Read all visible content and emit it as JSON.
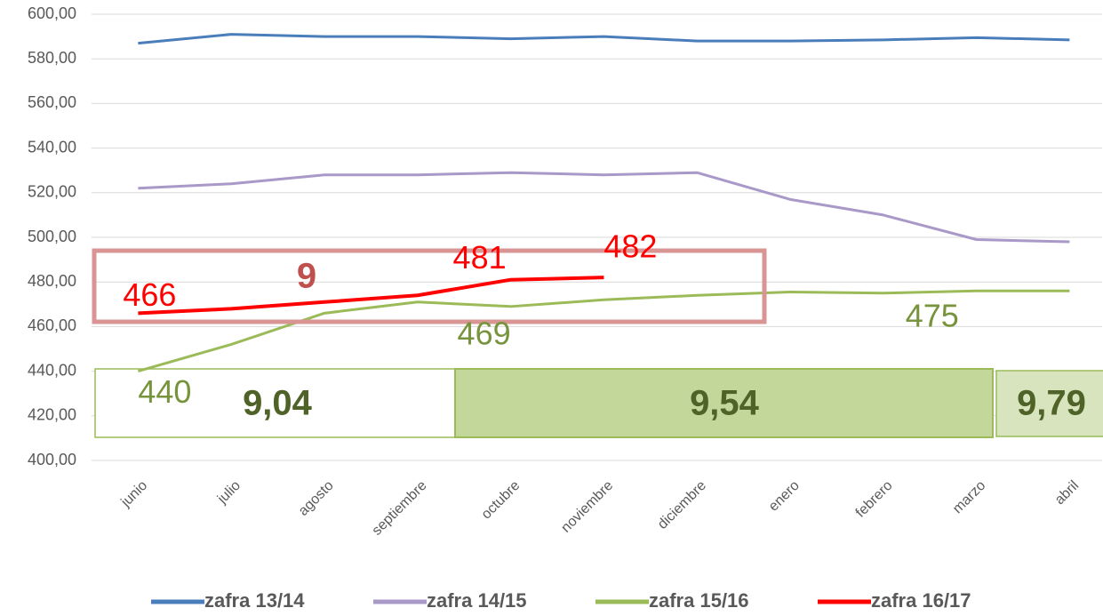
{
  "chart_data": {
    "type": "line",
    "categories": [
      "junio",
      "julio",
      "agosto",
      "septiembre",
      "octubre",
      "noviembre",
      "diciembre",
      "enero",
      "febrero",
      "marzo",
      "abril"
    ],
    "series": [
      {
        "name": "zafra 13/14",
        "color": "#4a7ebb",
        "values": [
          587,
          591,
          590,
          590,
          589,
          590,
          588,
          588,
          588.5,
          589.5,
          588.5
        ]
      },
      {
        "name": "zafra 14/15",
        "color": "#a899c8",
        "values": [
          522,
          524,
          528,
          528,
          529,
          528,
          529,
          517,
          510,
          499,
          498
        ]
      },
      {
        "name": "zafra 15/16",
        "color": "#9bbb59",
        "values": [
          440,
          452,
          466,
          471,
          469,
          472,
          474,
          475.5,
          475,
          476,
          476
        ],
        "value_labels": [
          "440",
          null,
          null,
          null,
          "469",
          null,
          null,
          null,
          "475",
          null,
          null
        ]
      },
      {
        "name": "zafra 16/17",
        "color": "#ff0000",
        "values": [
          466,
          468,
          471,
          474,
          481,
          482,
          null,
          null,
          null,
          null,
          null
        ],
        "value_labels": [
          "466",
          null,
          null,
          null,
          "481",
          "482",
          null,
          null,
          null,
          null,
          null
        ]
      }
    ],
    "ylim": [
      400,
      600
    ],
    "yticks": [
      {
        "value": 400,
        "label": "400,00"
      },
      {
        "value": 420,
        "label": "420,00"
      },
      {
        "value": 440,
        "label": "440,00"
      },
      {
        "value": 460,
        "label": "460,00"
      },
      {
        "value": 480,
        "label": "480,00"
      },
      {
        "value": 500,
        "label": "500,00"
      },
      {
        "value": 520,
        "label": "520,00"
      },
      {
        "value": 540,
        "label": "540,00"
      },
      {
        "value": 560,
        "label": "560,00"
      },
      {
        "value": 580,
        "label": "580,00"
      },
      {
        "value": 600,
        "label": "600,00"
      }
    ],
    "grid": true,
    "legend": "bottom",
    "annotations": [
      "9",
      "9,04",
      "9,54",
      "9,79"
    ]
  }
}
